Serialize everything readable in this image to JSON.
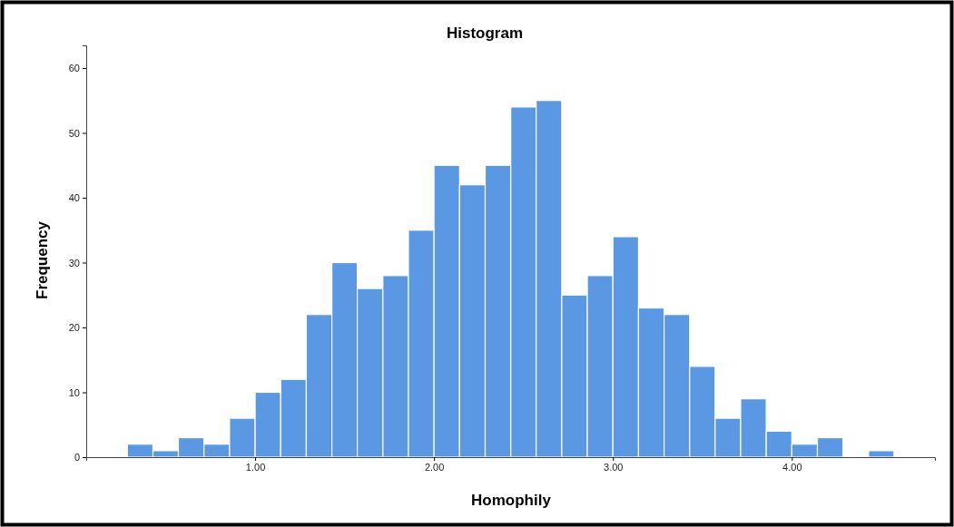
{
  "chart_data": {
    "type": "histogram",
    "title": "Histogram",
    "xlabel": "Homophily",
    "ylabel": "Frequency",
    "color": "#5a98e3",
    "bins": [
      0.286,
      0.429,
      0.571,
      0.714,
      0.857,
      1.0,
      1.143,
      1.286,
      1.429,
      1.571,
      1.714,
      1.857,
      2.0,
      2.143,
      2.286,
      2.429,
      2.571,
      2.714,
      2.857,
      3.0,
      3.143,
      3.286,
      3.429,
      3.571,
      3.714,
      3.857,
      4.0,
      4.143,
      4.286,
      4.429,
      4.571
    ],
    "values": [
      2,
      1,
      3,
      2,
      6,
      10,
      12,
      22,
      30,
      26,
      28,
      35,
      45,
      42,
      45,
      54,
      55,
      25,
      28,
      34,
      23,
      22,
      14,
      6,
      9,
      4,
      2,
      3,
      0,
      1
    ],
    "xlim": [
      0.056,
      4.8
    ],
    "ylim": [
      0,
      63.5
    ],
    "xticks": [
      {
        "value": 1,
        "label": "1.00"
      },
      {
        "value": 2,
        "label": "2.00"
      },
      {
        "value": 3,
        "label": "3.00"
      },
      {
        "value": 4,
        "label": "4.00"
      }
    ],
    "yticks": [
      0,
      10,
      20,
      30,
      40,
      50,
      60
    ],
    "grid": false
  }
}
